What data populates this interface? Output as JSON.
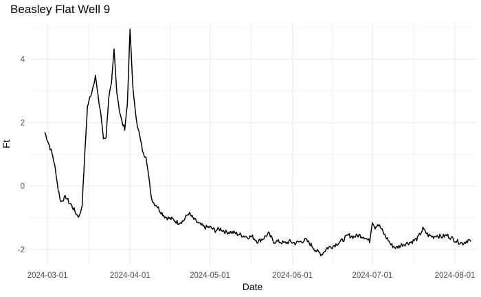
{
  "chart_data": {
    "type": "line",
    "title": "Beasley Flat Well 9",
    "xlabel": "Date",
    "ylabel": "Ft",
    "x_ticks": [
      "2024-03-01",
      "2024-04-01",
      "2024-05-01",
      "2024-06-01",
      "2024-07-01",
      "2024-08-01"
    ],
    "y_ticks": [
      -2,
      0,
      2,
      4
    ],
    "xlim": [
      "2024-02-23",
      "2024-08-09"
    ],
    "ylim": [
      -2.5,
      5.15
    ],
    "grid": true,
    "legend": "none",
    "line_color": "#000000",
    "grid_color": "#ebebeb",
    "series": [
      {
        "x": [
          "2024-02-29",
          "2024-03-01",
          "2024-03-02",
          "2024-03-03",
          "2024-03-04",
          "2024-03-05",
          "2024-03-06",
          "2024-03-07",
          "2024-03-08",
          "2024-03-09",
          "2024-03-10",
          "2024-03-11",
          "2024-03-12",
          "2024-03-13",
          "2024-03-14",
          "2024-03-15",
          "2024-03-16",
          "2024-03-17",
          "2024-03-18",
          "2024-03-19",
          "2024-03-20",
          "2024-03-21",
          "2024-03-22",
          "2024-03-23",
          "2024-03-24",
          "2024-03-25",
          "2024-03-26",
          "2024-03-27",
          "2024-03-28",
          "2024-03-29",
          "2024-03-30",
          "2024-03-31",
          "2024-04-01",
          "2024-04-02",
          "2024-04-03",
          "2024-04-04",
          "2024-04-05",
          "2024-04-06",
          "2024-04-07",
          "2024-04-08",
          "2024-04-09",
          "2024-04-10",
          "2024-04-11",
          "2024-04-12",
          "2024-04-13",
          "2024-04-14",
          "2024-04-15",
          "2024-04-17",
          "2024-04-19",
          "2024-04-21",
          "2024-04-23",
          "2024-04-25",
          "2024-04-27",
          "2024-04-29",
          "2024-05-01",
          "2024-05-03",
          "2024-05-05",
          "2024-05-07",
          "2024-05-09",
          "2024-05-11",
          "2024-05-13",
          "2024-05-15",
          "2024-05-17",
          "2024-05-19",
          "2024-05-21",
          "2024-05-23",
          "2024-05-25",
          "2024-05-27",
          "2024-05-29",
          "2024-05-31",
          "2024-06-02",
          "2024-06-04",
          "2024-06-06",
          "2024-06-08",
          "2024-06-10",
          "2024-06-12",
          "2024-06-14",
          "2024-06-16",
          "2024-06-18",
          "2024-06-20",
          "2024-06-22",
          "2024-06-24",
          "2024-06-26",
          "2024-06-28",
          "2024-06-30",
          "2024-07-01",
          "2024-07-02",
          "2024-07-03",
          "2024-07-04",
          "2024-07-05",
          "2024-07-06",
          "2024-07-07",
          "2024-07-08",
          "2024-07-10",
          "2024-07-12",
          "2024-07-14",
          "2024-07-16",
          "2024-07-18",
          "2024-07-20",
          "2024-07-22",
          "2024-07-24",
          "2024-07-25",
          "2024-07-27",
          "2024-07-29",
          "2024-07-31",
          "2024-08-02",
          "2024-08-04",
          "2024-08-06",
          "2024-08-07"
        ],
        "values": [
          1.7,
          1.45,
          1.2,
          0.95,
          0.5,
          -0.1,
          -0.5,
          -0.4,
          -0.35,
          -0.5,
          -0.6,
          -0.75,
          -0.9,
          -0.95,
          -0.6,
          1.0,
          2.5,
          2.8,
          3.1,
          3.5,
          2.8,
          2.3,
          1.5,
          1.55,
          2.8,
          3.2,
          4.3,
          3.0,
          2.4,
          2.0,
          1.8,
          2.6,
          4.95,
          3.2,
          2.3,
          1.85,
          1.4,
          1.0,
          0.95,
          0.3,
          -0.35,
          -0.55,
          -0.6,
          -0.75,
          -0.85,
          -0.95,
          -1.0,
          -1.05,
          -1.15,
          -1.1,
          -0.85,
          -1.05,
          -1.2,
          -1.3,
          -1.3,
          -1.4,
          -1.35,
          -1.45,
          -1.45,
          -1.5,
          -1.55,
          -1.6,
          -1.6,
          -1.75,
          -1.65,
          -1.5,
          -1.75,
          -1.75,
          -1.8,
          -1.75,
          -1.8,
          -1.75,
          -1.7,
          -1.85,
          -2.05,
          -2.15,
          -1.95,
          -1.9,
          -1.8,
          -1.7,
          -1.55,
          -1.6,
          -1.55,
          -1.6,
          -1.75,
          -1.1,
          -1.3,
          -1.2,
          -1.3,
          -1.45,
          -1.6,
          -1.7,
          -1.85,
          -1.95,
          -1.85,
          -1.8,
          -1.75,
          -1.65,
          -1.35,
          -1.55,
          -1.6,
          -1.55,
          -1.6,
          -1.55,
          -1.65,
          -1.75,
          -1.8,
          -1.7,
          -1.75
        ]
      }
    ]
  }
}
